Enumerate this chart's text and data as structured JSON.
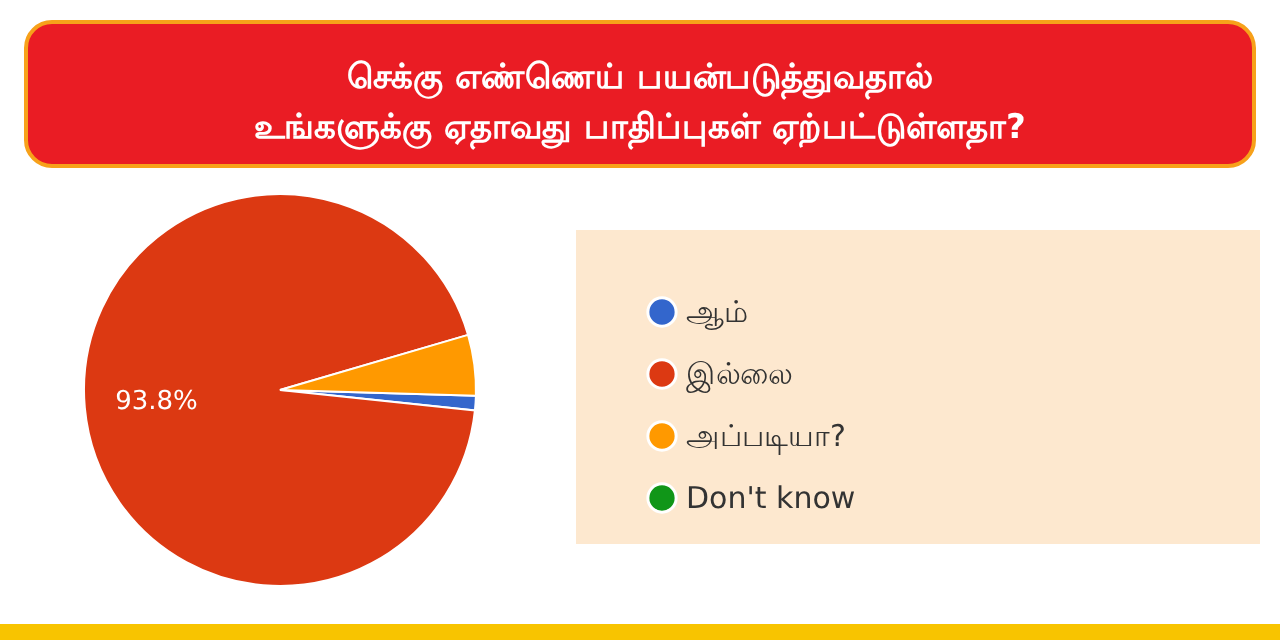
{
  "chart_data": {
    "type": "pie",
    "title": "செக்கு எண்ணெய் பயன்படுத்துவதால்\nஉங்களுக்கு ஏதாவது பாதிப்புகள் ஏற்பட்டுள்ளதா?",
    "categories": [
      "ஆம்",
      "இல்லை",
      "அப்படியா?",
      "Don't know"
    ],
    "values": [
      1.2,
      93.8,
      5.0,
      0
    ],
    "colors": [
      "#3366cc",
      "#dc3912",
      "#ff9900",
      "#109618"
    ],
    "value_labels": [
      null,
      "93.8%",
      null,
      null
    ],
    "legend": "right"
  }
}
